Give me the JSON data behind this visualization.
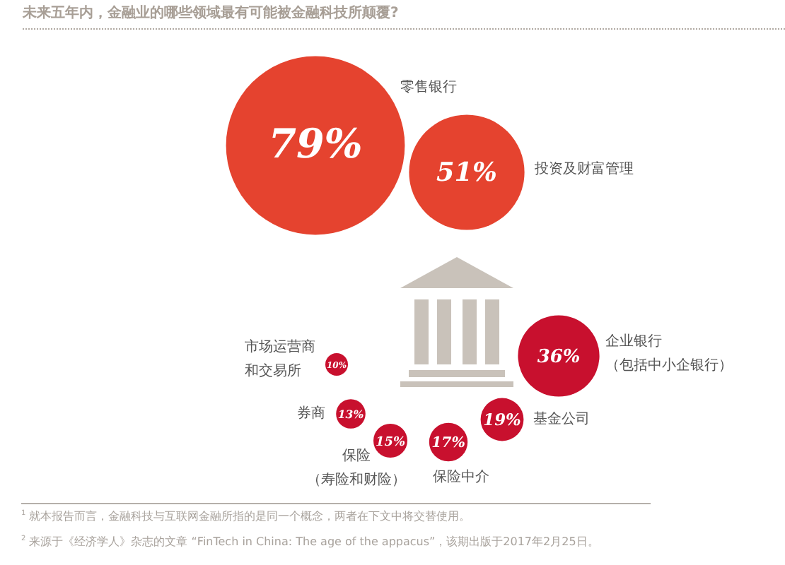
{
  "chart_data": {
    "type": "other",
    "title": "未来五年内，金融业的哪些领域最有可能被金融科技所颠覆?",
    "categories": [
      "零售银行",
      "投资及财富管理",
      "企业银行（包括中小企银行）",
      "市场运营商和交易所",
      "券商",
      "保险（寿险和财险）",
      "保险中介",
      "基金公司"
    ],
    "values": [
      79,
      51,
      36,
      10,
      13,
      15,
      17,
      19
    ],
    "value_labels": [
      "79%",
      "51%",
      "36%",
      "10%",
      "13%",
      "15%",
      "17%",
      "19%"
    ],
    "colors": [
      "#e5432f",
      "#e5432f",
      "#c8102e",
      "#c8102e",
      "#c8102e",
      "#c8102e",
      "#c8102e",
      "#c8102e"
    ],
    "annotations": [
      "$^{1}$ 就本报告而言，金融科技与互联网金融所指的是同一个概念，两者在下文中将交替使用。",
      "$^{2}$ 来源于《经济学人》杂志的文章 “FinTech in China: The age of the appacus”，该期出版于2017年2月25日。"
    ]
  }
}
